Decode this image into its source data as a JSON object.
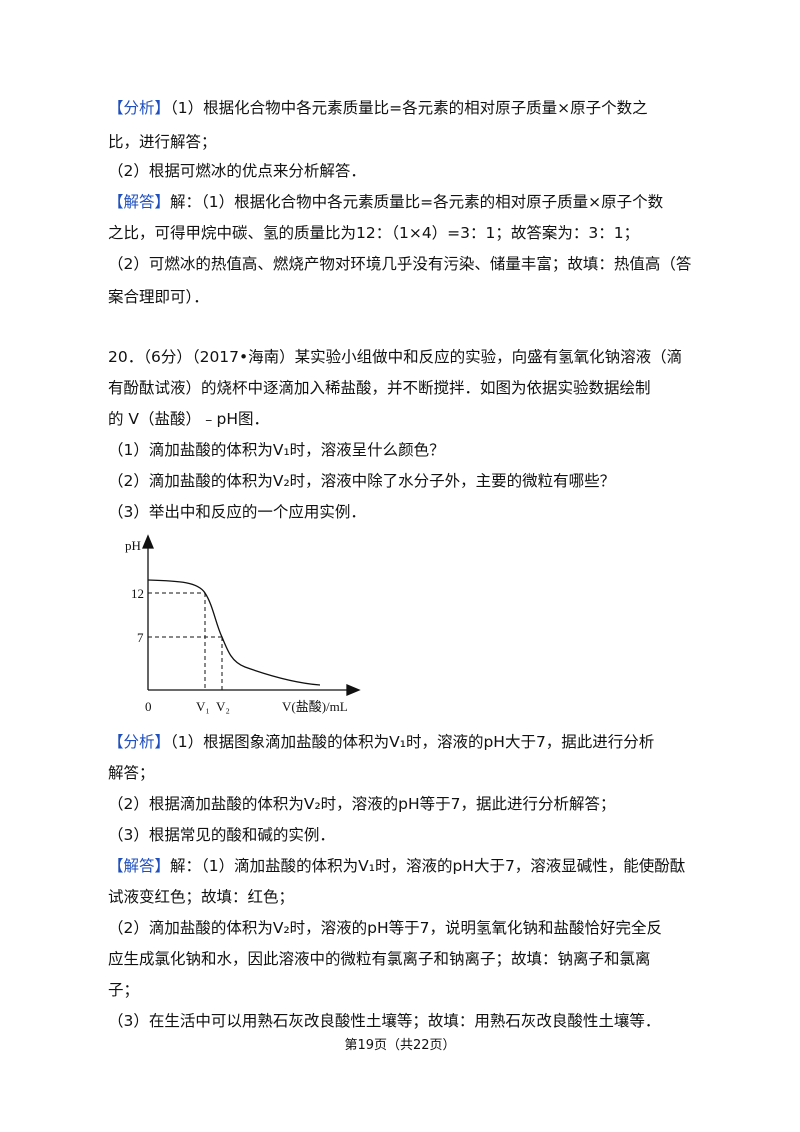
{
  "sections": [
    {
      "blocks": [
        {
          "label": "【分析】",
          "lines": [
            "（1）根据化合物中各元素质量比=各元素的相对原子质量×原子个数之",
            "比，进行解答；"
          ]
        },
        {
          "lines": [
            "（2）根据可燃冰的优点来分析解答．"
          ]
        },
        {
          "label": "【解答】",
          "lines": [
            "解：（1）根据化合物中各元素质量比=各元素的相对原子质量×原子个数",
            "之比，可得甲烷中碳、氢的质量比为12：（1×4）=3：1；故答案为：3：1；",
            "（2）可燃冰的热值高、燃烧产物对环境几乎没有污染、储量丰富；故填：热值高（答",
            "案合理即可）．"
          ]
        }
      ]
    },
    {
      "blocks": [
        {
          "lines": [
            "20．（6分）（2017•海南）某实验小组做中和反应的实验，向盛有氢氧化钠溶液（滴",
            "有酚酞试液）的烧杯中逐滴加入稀盐酸，并不断搅拌．如图为依据实验数据绘制",
            "的 V（盐酸）﹣pH图．"
          ]
        },
        {
          "lines": [
            "（1）滴加盐酸的体积为V₁时，溶液呈什么颜色？"
          ]
        },
        {
          "lines": [
            "（2）滴加盐酸的体积为V₂时，溶液中除了水分子外，主要的微粒有哪些？"
          ]
        },
        {
          "lines": [
            "（3）举出中和反应的一个应用实例．"
          ]
        }
      ]
    },
    {
      "blocks": [
        {
          "label": "【分析】",
          "lines": [
            "（1）根据图象滴加盐酸的体积为V₁时，溶液的pH大于7，据此进行分析",
            "解答；"
          ]
        },
        {
          "lines": [
            "（2）根据滴加盐酸的体积为V₂时，溶液的pH等于7，据此进行分析解答；"
          ]
        },
        {
          "lines": [
            "（3）根据常见的酸和碱的实例．"
          ]
        },
        {
          "label": "【解答】",
          "lines": [
            "解：（1）滴加盐酸的体积为V₁时，溶液的pH大于7，溶液显碱性，能使酚酞",
            "试液变红色；故填：红色；"
          ]
        },
        {
          "lines": [
            "（2）滴加盐酸的体积为V₂时，溶液的pH等于7，说明氢氧化钠和盐酸恰好完全反",
            "应生成氯化钠和水，因此溶液中的微粒有氯离子和钠离子；故填：钠离子和氯离",
            "子；"
          ]
        },
        {
          "lines": [
            "（3）在生活中可以用熟石灰改良酸性土壤等；故填：用熟石灰改良酸性土壤等．"
          ]
        }
      ]
    }
  ],
  "figure": {
    "y_label": "pH",
    "tick_12": "12",
    "tick_7": "7",
    "origin": "0",
    "v1": "V₁",
    "v2": "V₂",
    "x_label": "V(盐酸)/mL"
  },
  "footer": "第19页（共22页）"
}
